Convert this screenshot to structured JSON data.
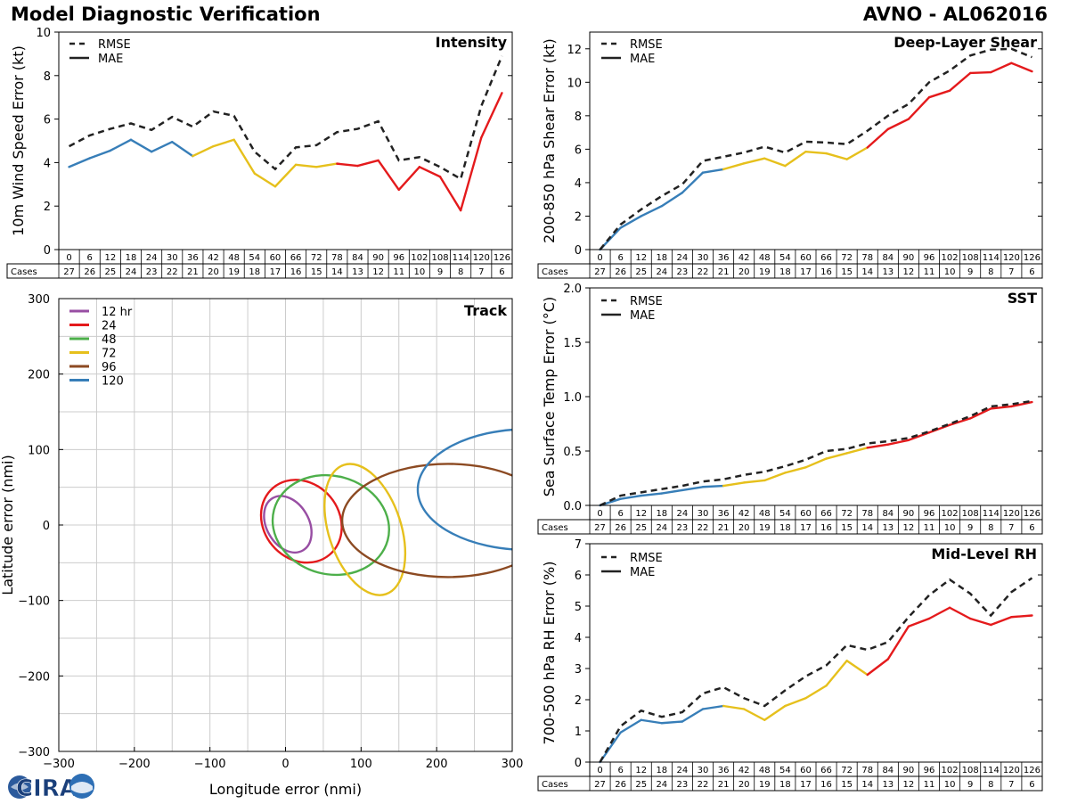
{
  "header": {
    "title": "Model Diagnostic Verification",
    "storm": "AVNO - AL062016"
  },
  "logo": {
    "text": "CIRA"
  },
  "colors": {
    "blue": "#377eb8",
    "yellow": "#e6c01c",
    "red": "#e41a1c",
    "purple": "#984ea3",
    "green": "#4daf4a",
    "brown": "#8c4a22",
    "grid": "#cccccc"
  },
  "chart_data": [
    {
      "id": "intensity",
      "type": "line",
      "title": "Intensity",
      "ylabel": "10m Wind Speed Error (kt)",
      "ylim": [
        0,
        10
      ],
      "yticks": [
        0,
        2,
        4,
        6,
        8,
        10
      ],
      "legend": [
        "RMSE",
        "MAE"
      ],
      "x": [
        0,
        6,
        12,
        18,
        24,
        30,
        36,
        42,
        48,
        54,
        60,
        66,
        72,
        78,
        84,
        90,
        96,
        102,
        108,
        114,
        120,
        126
      ],
      "cases_label": "Cases",
      "cases": [
        27,
        26,
        25,
        24,
        23,
        22,
        21,
        20,
        19,
        18,
        17,
        16,
        15,
        14,
        13,
        12,
        11,
        10,
        9,
        8,
        7,
        6
      ],
      "rmse": [
        4.75,
        5.25,
        5.55,
        5.8,
        5.5,
        6.1,
        5.65,
        6.35,
        6.15,
        4.5,
        3.7,
        4.7,
        4.8,
        5.4,
        5.55,
        5.9,
        4.1,
        4.25,
        3.8,
        3.25,
        6.6,
        8.9
      ],
      "mae": [
        3.8,
        4.2,
        4.55,
        5.05,
        4.5,
        4.95,
        4.3,
        4.75,
        5.05,
        3.5,
        2.9,
        3.9,
        3.8,
        3.95,
        3.85,
        4.1,
        2.75,
        3.8,
        3.35,
        1.8,
        5.15,
        7.2
      ]
    },
    {
      "id": "shear",
      "type": "line",
      "title": "Deep-Layer Shear",
      "ylabel": "200-850 hPa Shear Error (kt)",
      "ylim": [
        0,
        13
      ],
      "yticks": [
        0,
        2,
        4,
        6,
        8,
        10,
        12
      ],
      "legend": [
        "RMSE",
        "MAE"
      ],
      "x": [
        0,
        6,
        12,
        18,
        24,
        30,
        36,
        42,
        48,
        54,
        60,
        66,
        72,
        78,
        84,
        90,
        96,
        102,
        108,
        114,
        120,
        126
      ],
      "cases_label": "Cases",
      "cases": [
        27,
        26,
        25,
        24,
        23,
        22,
        21,
        20,
        19,
        18,
        17,
        16,
        15,
        14,
        13,
        12,
        11,
        10,
        9,
        8,
        7,
        6
      ],
      "rmse": [
        0.0,
        1.5,
        2.4,
        3.2,
        3.9,
        5.3,
        5.55,
        5.8,
        6.15,
        5.8,
        6.45,
        6.4,
        6.3,
        7.1,
        8.0,
        8.7,
        10.0,
        10.7,
        11.6,
        11.95,
        12.0,
        11.5
      ],
      "mae": [
        0.0,
        1.3,
        2.0,
        2.6,
        3.4,
        4.6,
        4.8,
        5.15,
        5.45,
        5.0,
        5.85,
        5.75,
        5.4,
        6.1,
        7.2,
        7.8,
        9.1,
        9.5,
        10.55,
        10.6,
        11.15,
        10.65
      ]
    },
    {
      "id": "sst",
      "type": "line",
      "title": "SST",
      "ylabel": "Sea Surface Temp Error (°C)",
      "ylim": [
        0,
        2.0
      ],
      "yticks": [
        "0.0",
        "0.5",
        "1.0",
        "1.5",
        "2.0"
      ],
      "legend": [
        "RMSE",
        "MAE"
      ],
      "x": [
        0,
        6,
        12,
        18,
        24,
        30,
        36,
        42,
        48,
        54,
        60,
        66,
        72,
        78,
        84,
        90,
        96,
        102,
        108,
        114,
        120,
        126
      ],
      "cases_label": "Cases",
      "cases": [
        27,
        26,
        25,
        24,
        23,
        22,
        21,
        20,
        19,
        18,
        17,
        16,
        15,
        14,
        13,
        12,
        11,
        10,
        9,
        8,
        7,
        6
      ],
      "rmse": [
        0.0,
        0.09,
        0.12,
        0.15,
        0.18,
        0.22,
        0.24,
        0.28,
        0.31,
        0.36,
        0.42,
        0.5,
        0.52,
        0.57,
        0.59,
        0.62,
        0.68,
        0.75,
        0.82,
        0.91,
        0.93,
        0.96
      ],
      "mae": [
        0.0,
        0.06,
        0.09,
        0.11,
        0.14,
        0.17,
        0.18,
        0.21,
        0.23,
        0.3,
        0.35,
        0.43,
        0.48,
        0.53,
        0.56,
        0.6,
        0.67,
        0.74,
        0.8,
        0.89,
        0.91,
        0.95
      ]
    },
    {
      "id": "rh",
      "type": "line",
      "title": "Mid-Level RH",
      "ylabel": "700-500 hPa RH Error (%)",
      "ylim": [
        0,
        7
      ],
      "yticks": [
        0,
        1,
        2,
        3,
        4,
        5,
        6,
        7
      ],
      "legend": [
        "RMSE",
        "MAE"
      ],
      "x": [
        0,
        6,
        12,
        18,
        24,
        30,
        36,
        42,
        48,
        54,
        60,
        66,
        72,
        78,
        84,
        90,
        96,
        102,
        108,
        114,
        120,
        126
      ],
      "cases_label": "Cases",
      "cases": [
        27,
        26,
        25,
        24,
        23,
        22,
        21,
        20,
        19,
        18,
        17,
        16,
        15,
        14,
        13,
        12,
        11,
        10,
        9,
        8,
        7,
        6
      ],
      "rmse": [
        0.0,
        1.15,
        1.65,
        1.45,
        1.6,
        2.2,
        2.4,
        2.05,
        1.8,
        2.3,
        2.75,
        3.1,
        3.75,
        3.6,
        3.85,
        4.65,
        5.35,
        5.85,
        5.4,
        4.7,
        5.45,
        5.9
      ],
      "mae": [
        0.0,
        0.95,
        1.35,
        1.25,
        1.3,
        1.7,
        1.8,
        1.7,
        1.35,
        1.8,
        2.05,
        2.45,
        3.25,
        2.8,
        3.3,
        4.35,
        4.6,
        4.95,
        4.6,
        4.4,
        4.65,
        4.7
      ]
    },
    {
      "id": "track",
      "type": "scatter",
      "title": "Track",
      "xlabel": "Longitude error (nmi)",
      "ylabel": "Latitude error (nmi)",
      "xlim": [
        -300,
        300
      ],
      "ylim": [
        -300,
        300
      ],
      "xticks": [
        "−300",
        "−200",
        "−100",
        "0",
        "100",
        "200",
        "300"
      ],
      "yticks": [
        "−300",
        "−200",
        "−100",
        "0",
        "100",
        "200",
        "300"
      ],
      "ellipses": [
        {
          "label": "12 hr",
          "color": "purple",
          "cx": 3,
          "cy": 1,
          "rx": 28,
          "ry": 40,
          "angle": 30
        },
        {
          "label": "24",
          "color": "red",
          "cx": 21,
          "cy": 5,
          "rx": 50,
          "ry": 58,
          "angle": 40
        },
        {
          "label": "48",
          "color": "green",
          "cx": 60,
          "cy": 0,
          "rx": 65,
          "ry": 78,
          "angle": 75
        },
        {
          "label": "72",
          "color": "yellow",
          "cx": 105,
          "cy": -6,
          "rx": 48,
          "ry": 90,
          "angle": 18
        },
        {
          "label": "96",
          "color": "brown",
          "cx": 215,
          "cy": 6,
          "rx": 140,
          "ry": 75,
          "angle": 0
        },
        {
          "label": "120",
          "color": "blue",
          "cx": 320,
          "cy": 47,
          "rx": 145,
          "ry": 80,
          "angle": 0
        }
      ]
    }
  ]
}
